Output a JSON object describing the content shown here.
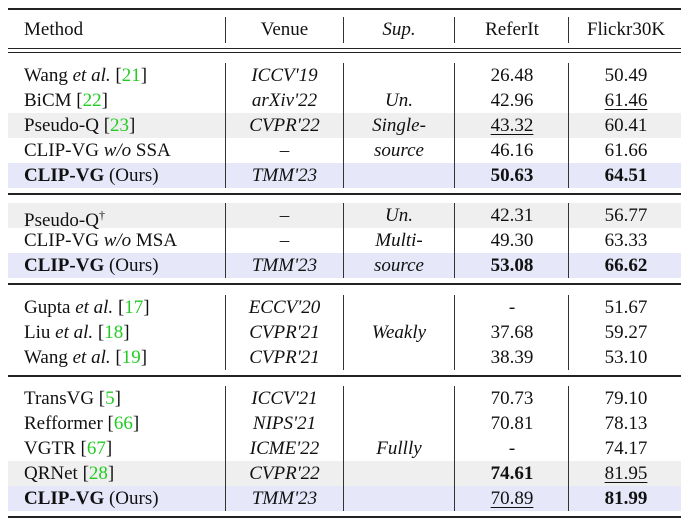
{
  "table": {
    "headers": {
      "method": "Method",
      "venue": "Venue",
      "sup": "Sup.",
      "referit": "ReferIt",
      "flickr": "Flickr30K"
    },
    "groups": [
      {
        "supervision": [
          "Un.",
          "Single-",
          "source"
        ],
        "rows": [
          {
            "method": "Wang",
            "method_italic": "et al.",
            "cite": "21",
            "venue": "ICCV'19",
            "referit": "26.48",
            "flickr": "50.49",
            "bg": "none"
          },
          {
            "method": "BiCM",
            "cite": "22",
            "venue": "arXiv'22",
            "referit": "42.96",
            "flickr": "61.46",
            "flickr_style": "underline",
            "bg": "none"
          },
          {
            "method": "Pseudo-Q",
            "cite": "23",
            "venue": "CVPR'22",
            "referit": "43.32",
            "referit_style": "underline",
            "flickr": "60.41",
            "bg": "gray"
          },
          {
            "method": "CLIP-VG",
            "method_italic": "w/o",
            "method_suffix": "SSA",
            "venue": "–",
            "referit": "46.16",
            "flickr": "61.66",
            "bg": "none"
          },
          {
            "method": "CLIP-VG",
            "method_bold": true,
            "method_suffix": "(Ours)",
            "venue": "TMM'23",
            "referit": "50.63",
            "referit_style": "bold",
            "flickr": "64.51",
            "flickr_style": "bold",
            "bg": "blue"
          }
        ]
      },
      {
        "supervision": [
          "Un.",
          "Multi-",
          "source"
        ],
        "rows": [
          {
            "method": "Pseudo-Q",
            "dagger": "†",
            "venue": "–",
            "referit": "42.31",
            "flickr": "56.77",
            "bg": "gray"
          },
          {
            "method": "CLIP-VG",
            "method_italic": "w/o",
            "method_suffix": "MSA",
            "venue": "–",
            "referit": "49.30",
            "flickr": "63.33",
            "bg": "none"
          },
          {
            "method": "CLIP-VG",
            "method_bold": true,
            "method_suffix": "(Ours)",
            "venue": "TMM'23",
            "referit": "53.08",
            "referit_style": "bold",
            "flickr": "66.62",
            "flickr_style": "bold",
            "bg": "blue"
          }
        ]
      },
      {
        "supervision": [
          "Weakly"
        ],
        "rows": [
          {
            "method": "Gupta",
            "method_italic": "et al.",
            "cite": "17",
            "venue": "ECCV'20",
            "referit": "-",
            "flickr": "51.67",
            "bg": "none"
          },
          {
            "method": "Liu",
            "method_italic": "et al.",
            "cite": "18",
            "venue": "CVPR'21",
            "referit": "37.68",
            "flickr": "59.27",
            "bg": "none"
          },
          {
            "method": "Wang",
            "method_italic": "et al.",
            "cite": "19",
            "venue": "CVPR'21",
            "referit": "38.39",
            "flickr": "53.10",
            "bg": "none"
          }
        ]
      },
      {
        "supervision": [
          "Fullly"
        ],
        "rows": [
          {
            "method": "TransVG",
            "cite": "5",
            "venue": "ICCV'21",
            "referit": "70.73",
            "flickr": "79.10",
            "bg": "none"
          },
          {
            "method": "Refformer",
            "cite": "66",
            "venue": "NIPS'21",
            "referit": "70.81",
            "flickr": "78.13",
            "bg": "none"
          },
          {
            "method": "VGTR",
            "cite": "67",
            "venue": "ICME'22",
            "referit": "-",
            "flickr": "74.17",
            "bg": "none"
          },
          {
            "method": "QRNet",
            "cite": "28",
            "venue": "CVPR'22",
            "referit": "74.61",
            "referit_style": "bold",
            "flickr": "81.95",
            "flickr_style": "underline",
            "bg": "gray"
          },
          {
            "method": "CLIP-VG",
            "method_bold": true,
            "method_suffix": "(Ours)",
            "venue": "TMM'23",
            "referit": "70.89",
            "referit_style": "underline",
            "flickr": "81.99",
            "flickr_style": "bold",
            "bg": "blue"
          }
        ]
      }
    ],
    "colors": {
      "citation": "#22cc22",
      "highlight_gray": "#efefef",
      "highlight_blue": "#e6e8fa"
    }
  }
}
